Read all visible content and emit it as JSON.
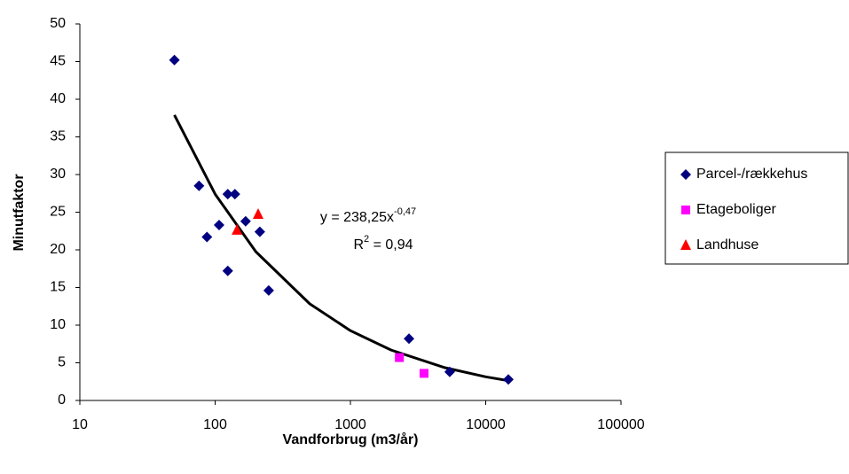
{
  "chart_data": {
    "type": "scatter",
    "x_label": "Vandforbrug (m3/år)",
    "y_label": "Minutfaktor",
    "xscale": "log",
    "xlim": [
      10,
      100000
    ],
    "xticks": [
      10,
      100,
      1000,
      10000,
      100000
    ],
    "ylim": [
      0,
      50
    ],
    "yticks": [
      0,
      5,
      10,
      15,
      20,
      25,
      30,
      35,
      40,
      45,
      50
    ],
    "series": [
      {
        "name": "Parcel-/rækkehus",
        "color": "#000080",
        "marker": "diamond",
        "x": [
          50,
          76,
          87,
          107,
          124,
          124,
          140,
          168,
          214,
          249,
          2710,
          5420,
          14700
        ],
        "values": [
          45.2,
          28.5,
          21.7,
          23.3,
          17.2,
          27.4,
          27.4,
          23.8,
          22.4,
          14.6,
          8.2,
          3.8,
          2.8
        ]
      },
      {
        "name": "Etageboliger",
        "color": "#ff00ff",
        "marker": "square",
        "x": [
          2300,
          3500
        ],
        "values": [
          5.7,
          3.6
        ]
      },
      {
        "name": "Landhuse",
        "color": "#ff0000",
        "marker": "triangle",
        "x": [
          145,
          208
        ],
        "values": [
          22.6,
          24.7
        ]
      }
    ],
    "trendline": {
      "color": "#000000",
      "x": [
        50,
        100,
        200,
        500,
        1000,
        2000,
        5000,
        10000,
        15000
      ],
      "values": [
        37.9,
        27.4,
        19.75,
        12.84,
        9.27,
        6.69,
        4.35,
        3.14,
        2.6
      ]
    },
    "equation": "y = 238,25x",
    "equation_exponent": "-0,47",
    "r2_letter": "R",
    "r2_exponent": "2",
    "r2_value": " = 0,94"
  }
}
